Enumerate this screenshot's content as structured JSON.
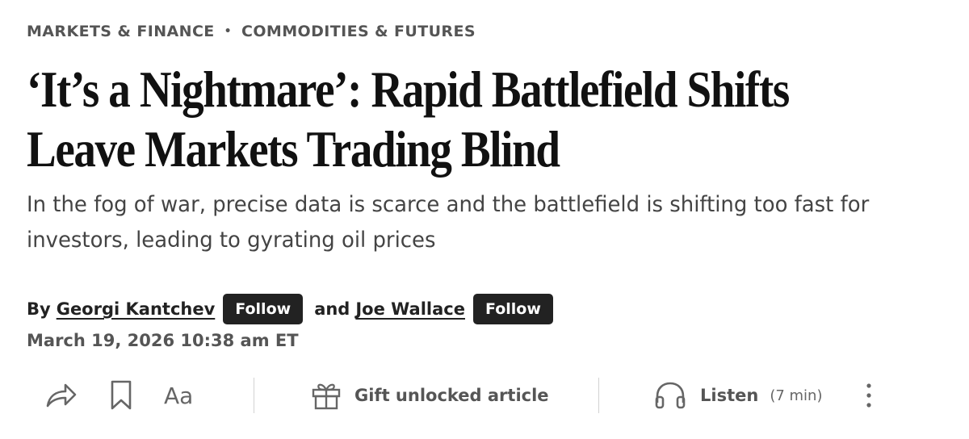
{
  "breadcrumb": {
    "section": "MARKETS & FINANCE",
    "separator": "•",
    "subsection": "COMMODITIES & FUTURES"
  },
  "article": {
    "headline": "‘It’s a Nightmare’: Rapid Battlefield Shifts Leave Markets Trading Blind",
    "dek": "In the fog of war, precise data is scarce and the battlefield is shifting too fast for investors, leading to gyrating oil prices",
    "byline": {
      "prefix": "By",
      "author1": "Georgi Kantchev",
      "conjunction": "and",
      "author2": "Joe Wallace",
      "follow_label": "Follow"
    },
    "date": "March 19, 2026 10:38 am ET"
  },
  "toolbar": {
    "share_icon": "share-arrow-icon",
    "bookmark_icon": "bookmark-icon",
    "text_size_label": "Aa",
    "gift_icon": "gift-icon",
    "gift_label": "Gift unlocked article",
    "listen_icon": "headphones-icon",
    "listen_label": "Listen",
    "listen_duration": "(7 min)",
    "more_icon": "more-vertical-icon"
  },
  "colors": {
    "text": "#111111",
    "muted": "#555555",
    "button_bg": "#222222",
    "button_text": "#ffffff",
    "divider": "#d2d2d2"
  }
}
